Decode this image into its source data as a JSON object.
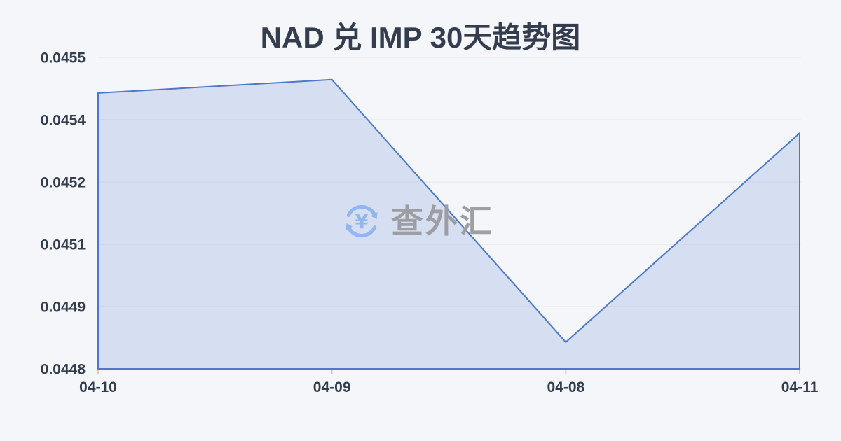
{
  "page": {
    "background": "#f4f6f9"
  },
  "header": {
    "title": "NAD 兑 IMP 30天趋势图"
  },
  "watermark": {
    "icon": "currency-exchange-refresh-icon",
    "icon_color": "#8fb4f0",
    "text": "查外汇",
    "text_color": "#9a9b9e"
  },
  "chart_data": {
    "type": "area",
    "title": "NAD 兑 IMP 30天趋势图",
    "categories": [
      "04-10",
      "04-09",
      "04-08",
      "04-11"
    ],
    "series": [
      {
        "name": "NAD/IMP",
        "values": [
          0.04542,
          0.04545,
          0.04486,
          0.04533
        ]
      }
    ],
    "xlabel": "",
    "ylabel": "",
    "ylim": [
      0.0448,
      0.0455
    ],
    "y_tick_labels_top_to_bottom": [
      "0.0455",
      "0.0454",
      "0.0452",
      "0.0451",
      "0.0449",
      "0.0448"
    ],
    "grid": true,
    "legend": "none",
    "colors": {
      "line": "#4c78cb",
      "fill": "rgba(76,120,203,0.18)",
      "grid": "#e3e6ec",
      "axis_label": "#333d4e",
      "tick": "#c9cdd4"
    }
  }
}
